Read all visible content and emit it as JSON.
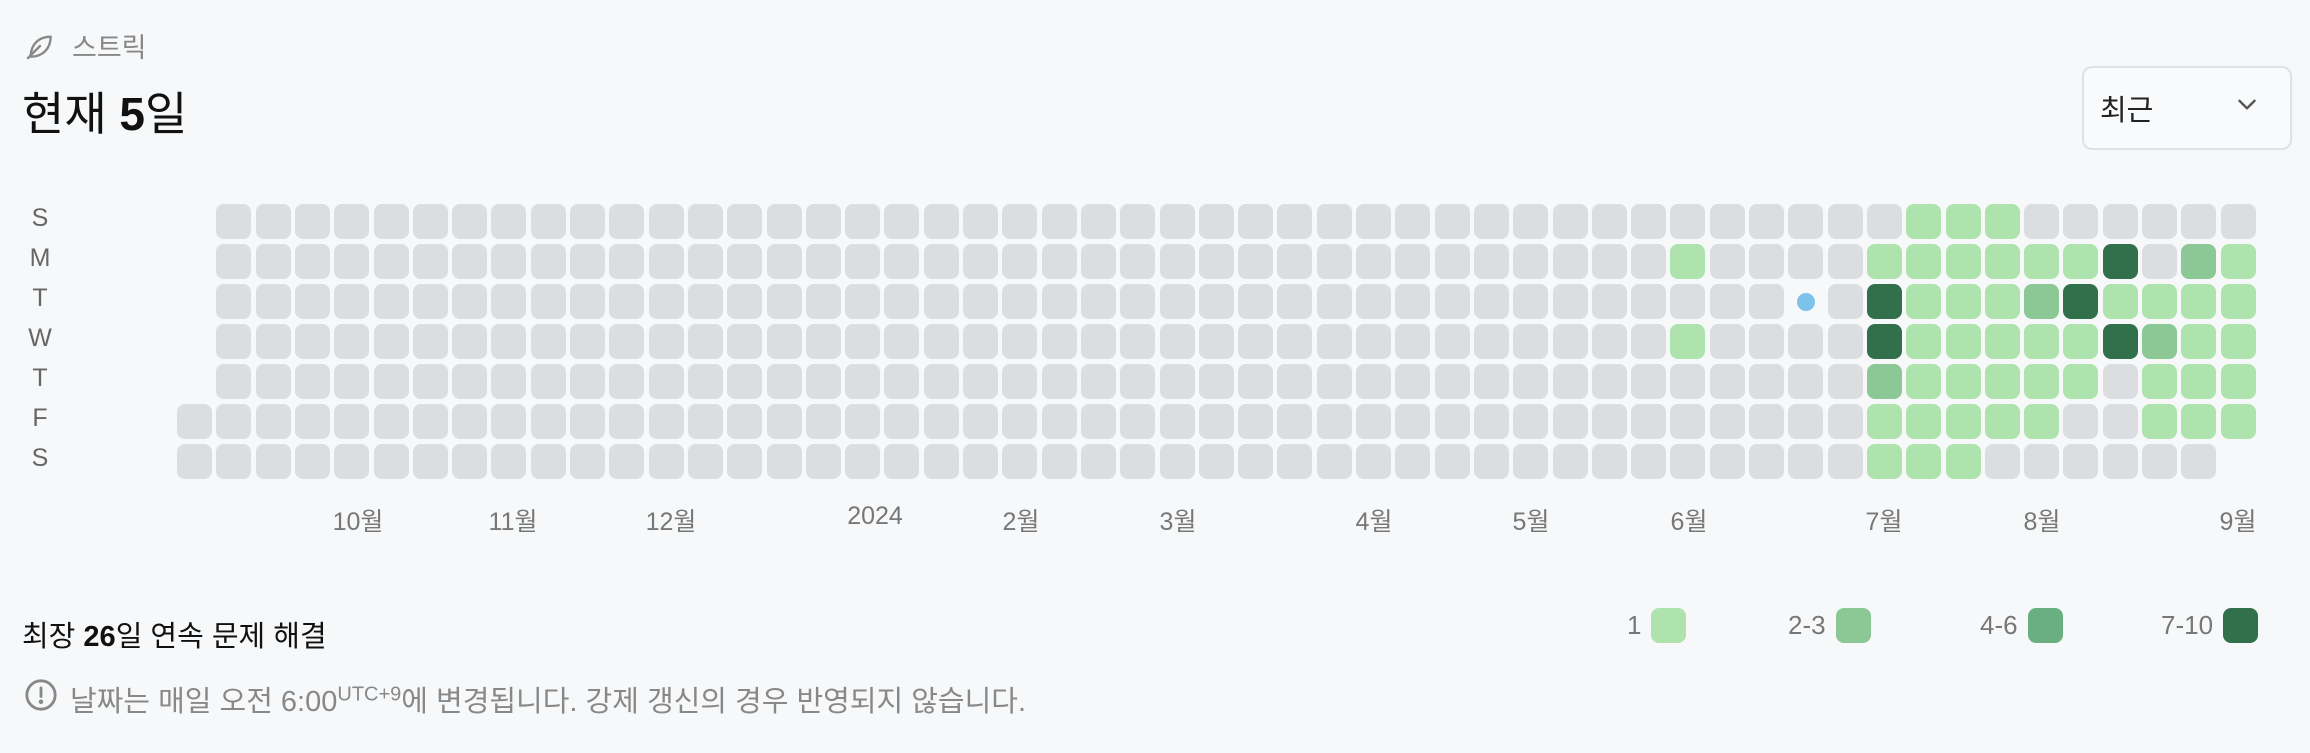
{
  "header": {
    "label": "스트릭",
    "icon": "leaf-icon"
  },
  "current": {
    "prefix": "현재 ",
    "value": "5",
    "suffix": "일"
  },
  "dropdown": {
    "selected": "최근",
    "icon": "chevron-down-icon"
  },
  "weekdays": [
    "S",
    "M",
    "T",
    "W",
    "T",
    "F",
    "S"
  ],
  "months": [
    "10월",
    "11월",
    "12월",
    "2024",
    "2월",
    "3월",
    "4월",
    "5월",
    "6월",
    "7월",
    "8월",
    "9월"
  ],
  "longest": {
    "prefix": "최장 ",
    "value": "26",
    "suffix": "일 연속 문제 해결"
  },
  "legend": [
    {
      "label": "1",
      "color": "#aee3ad"
    },
    {
      "label": "2-3",
      "color": "#8cc796"
    },
    {
      "label": "4-6",
      "color": "#6aaf7f"
    },
    {
      "label": "7-10",
      "color": "#31704a"
    }
  ],
  "notice": {
    "icon": "info-icon",
    "text_before": "날짜는 매일 오전 6:00",
    "sup": "UTC+9",
    "text_after": "에 변경됩니다. 강제 갱신의 경우 반영되지 않습니다."
  },
  "heatmap": {
    "weeks": 53,
    "today_marker": {
      "week": 41,
      "day": 2
    },
    "levels": {
      "0-3": 0,
      "0-4": 0,
      "0-5": 0,
      "0-6": 0,
      "38-1": 1,
      "38-3": 1,
      "43-1": 1,
      "43-2": 4,
      "43-3": 4,
      "43-4": 2,
      "43-5": 1,
      "43-6": 1,
      "44-0": 1,
      "44-1": 1,
      "44-2": 1,
      "44-3": 1,
      "44-4": 1,
      "44-5": 1,
      "44-6": 1,
      "45-0": 1,
      "45-1": 1,
      "45-2": 1,
      "45-3": 1,
      "45-4": 1,
      "45-5": 1,
      "45-6": 1,
      "46-0": 1,
      "46-1": 1,
      "46-2": 1,
      "46-3": 1,
      "46-4": 1,
      "46-5": 1,
      "47-1": 1,
      "47-2": 2,
      "47-3": 1,
      "47-4": 1,
      "47-5": 1,
      "48-1": 1,
      "48-2": 4,
      "48-3": 1,
      "48-4": 1,
      "49-1": 4,
      "49-2": 1,
      "49-3": 4,
      "50-2": 1,
      "50-3": 2,
      "50-4": 1,
      "50-5": 1,
      "51-1": 2,
      "51-2": 1,
      "51-3": 1,
      "51-4": 1,
      "51-5": 1,
      "52-1": 1,
      "52-2": 1,
      "52-3": 1,
      "52-4": 1,
      "52-5": 1
    },
    "missing": [
      "0-0",
      "0-1",
      "0-2",
      "0-3",
      "0-4",
      "52-6"
    ]
  }
}
